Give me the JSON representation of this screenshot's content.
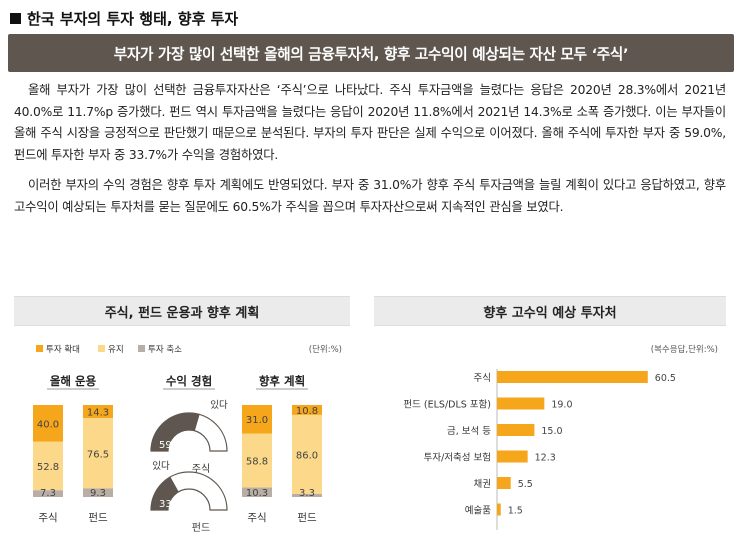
{
  "header": {
    "title": "한국 부자의 투자 행태, 향후 투자"
  },
  "banner": {
    "text": "부자가 가장 많이 선택한 올해의 금융투자처, 향후 고수익이 예상되는 자산 모두 ‘주식’"
  },
  "body": {
    "p1": "올해 부자가 가장 많이 선택한 금융투자자산은 ‘주식’으로 나타났다. 주식 투자금액을 늘렸다는 응답은 2020년 28.3%에서 2021년 40.0%로 11.7%p 증가했다. 펀드 역시 투자금액을 늘렸다는 응답이 2020년 11.8%에서 2021년 14.3%로 소폭 증가했다. 이는 부자들이 올해 주식 시장을 긍정적으로 판단했기 때문으로 분석된다. 부자의 투자 판단은 실제 수익으로 이어졌다. 올해 주식에 투자한 부자 중 59.0%, 펀드에 투자한 부자 중 33.7%가 수익을 경험하였다.",
    "p2": "이러한 부자의 수익 경험은 향후 투자 계획에도 반영되었다. 부자 중 31.0%가 향후 주식 투자금액을 늘릴 계획이 있다고 응답하였고, 향후 고수익이 예상되는 투자처를 묻는 질문에도 60.5%가 주식을 꼽으며 투자자산으로써 지속적인 관심을 보였다."
  },
  "panel_left": {
    "title": "주식, 펀드 운용과 향후 계획"
  },
  "panel_right": {
    "title": "향후 고수익 예상 투자처"
  },
  "colors": {
    "increase": "#f5a61b",
    "maintain": "#fcd98a",
    "decrease": "#b8aea6",
    "gauge": "#5f574f",
    "gauge_bg": "#ffffff",
    "bar_right": "#f5a61b",
    "title_line": "#999999"
  },
  "chart_data": [
    {
      "type": "bar",
      "stacked": true,
      "legend": [
        "투자 확대",
        "유지",
        "투자 축소"
      ],
      "unit_note": "(단위:%)",
      "groups": [
        {
          "title": "올해 운용",
          "categories": [
            "주식",
            "펀드"
          ],
          "series": [
            {
              "name": "투자 확대",
              "values": [
                40.0,
                14.3
              ]
            },
            {
              "name": "유지",
              "values": [
                52.8,
                76.5
              ]
            },
            {
              "name": "투자 축소",
              "values": [
                7.3,
                9.3
              ]
            }
          ]
        },
        {
          "title": "향후 계획",
          "categories": [
            "주식",
            "펀드"
          ],
          "series": [
            {
              "name": "투자 확대",
              "values": [
                31.0,
                10.8
              ]
            },
            {
              "name": "유지",
              "values": [
                58.8,
                86.0
              ]
            },
            {
              "name": "투자 축소",
              "values": [
                10.3,
                3.3
              ]
            }
          ]
        }
      ]
    },
    {
      "type": "gauge",
      "title": "수익 경험",
      "label": "있다",
      "items": [
        {
          "name": "주식",
          "value": 59.0
        },
        {
          "name": "펀드",
          "value": 33.7
        }
      ]
    },
    {
      "type": "bar",
      "orientation": "horizontal",
      "unit_note": "(복수응답,단위:%)",
      "categories": [
        "주식",
        "펀드 (ELS/DLS 포함)",
        "금, 보석 등",
        "투자/저축성 보험",
        "채권",
        "예술품"
      ],
      "values": [
        60.5,
        19.0,
        15.0,
        12.3,
        5.5,
        1.5
      ],
      "xlim": [
        0,
        65
      ]
    }
  ]
}
